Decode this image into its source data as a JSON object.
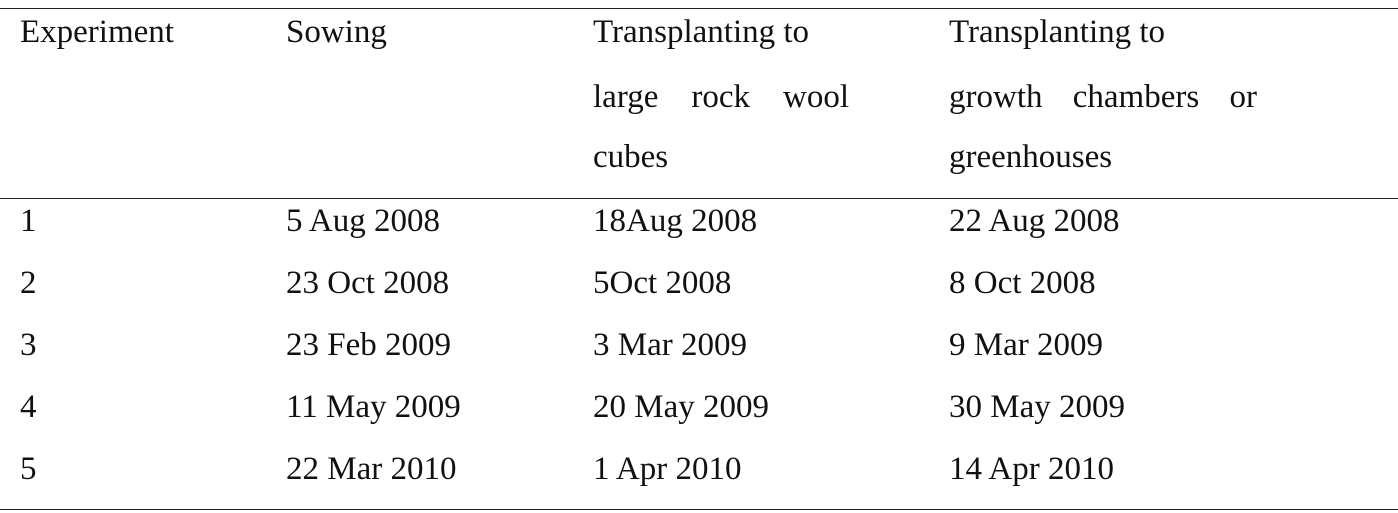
{
  "table": {
    "headers": [
      "Experiment",
      "Sowing",
      "Transplanting to large rock wool cubes",
      "Transplanting to growth chambers or greenhouses"
    ],
    "header_lines": {
      "experiment": "Experiment",
      "sowing": "Sowing",
      "col2_line1": "Transplanting to",
      "col2_line2_words": [
        "large",
        "rock",
        "wool"
      ],
      "col2_line3": "cubes",
      "col3_line1": "Transplanting to",
      "col3_line2_words": [
        "growth",
        "chambers",
        "or"
      ],
      "col3_line3": "greenhouses"
    },
    "rows": [
      [
        "1",
        "5 Aug 2008",
        "18Aug 2008",
        "22 Aug 2008"
      ],
      [
        "2",
        "23 Oct 2008",
        "5Oct 2008",
        "8 Oct 2008"
      ],
      [
        "3",
        "23 Feb 2009",
        "3 Mar 2009",
        "9 Mar 2009"
      ],
      [
        "4",
        "11 May 2009",
        "20 May 2009",
        "30 May 2009"
      ],
      [
        "5",
        "22 Mar 2010",
        "1 Apr 2010",
        "14 Apr 2010"
      ]
    ]
  }
}
